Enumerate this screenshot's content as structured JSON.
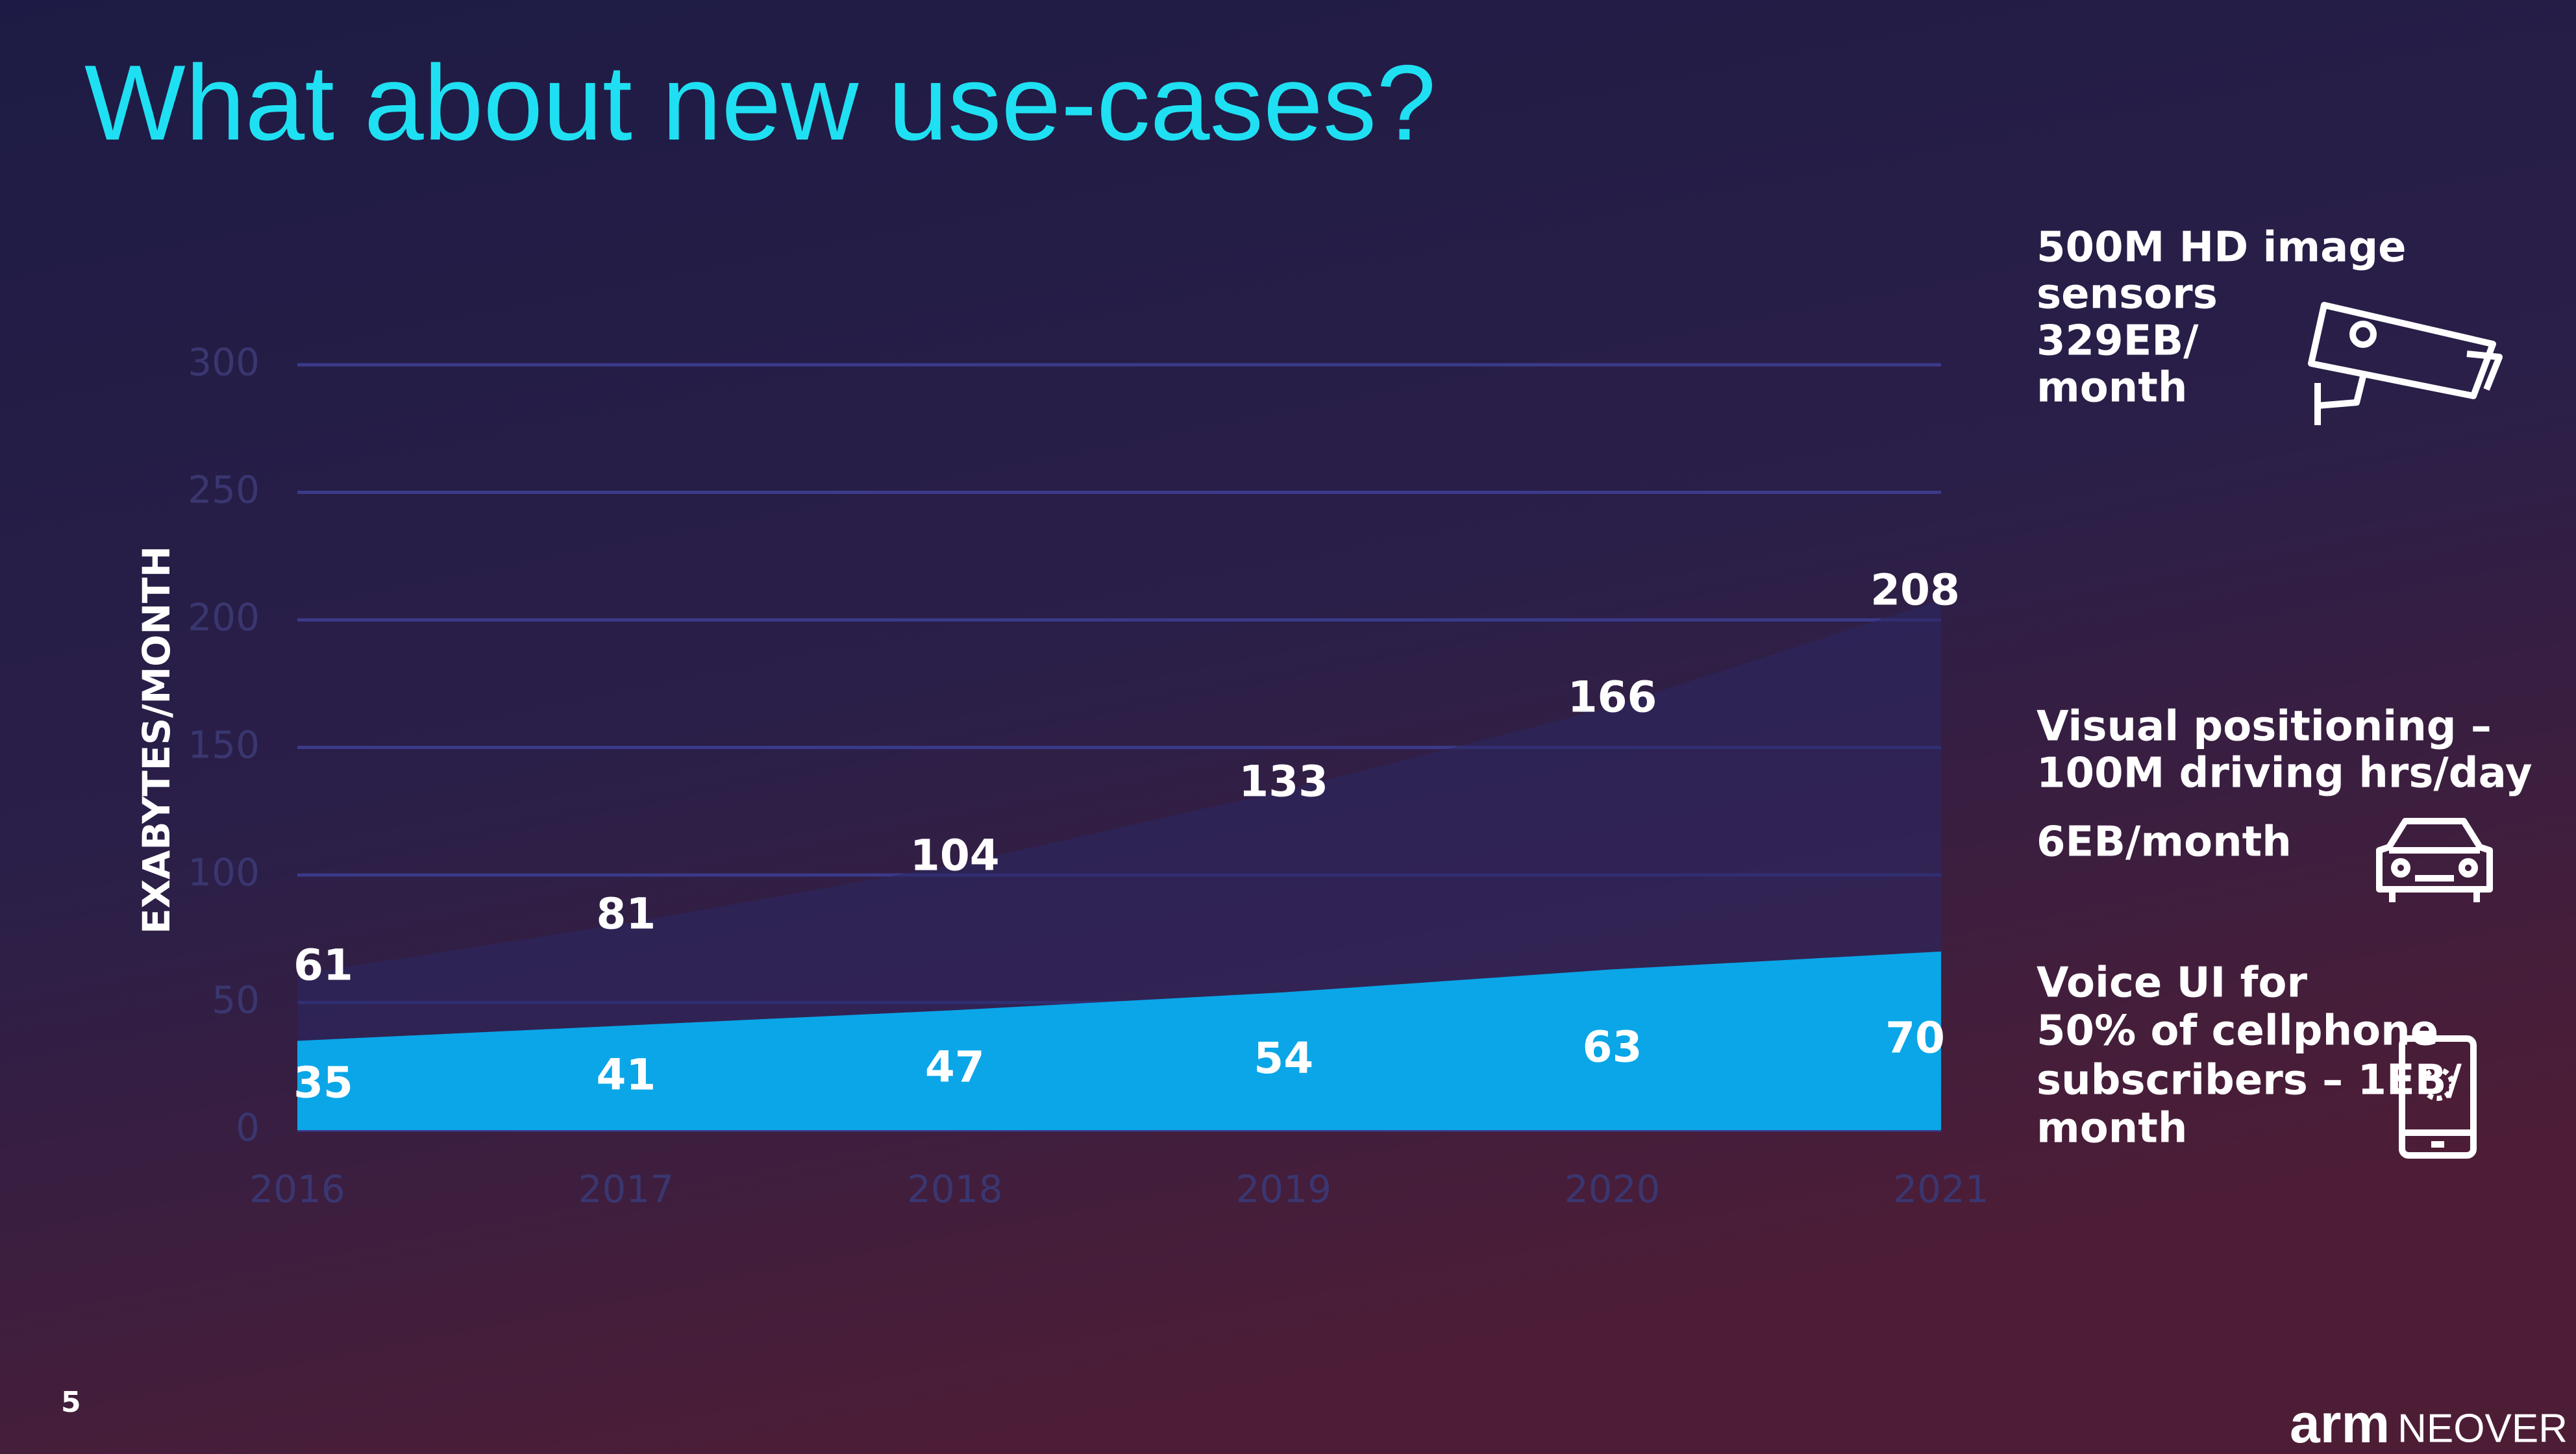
{
  "chart_data": {
    "type": "area",
    "title": "What about new use-cases?",
    "y_label": "EXABYTES/MONTH",
    "categories": [
      "2016",
      "2017",
      "2018",
      "2019",
      "2020",
      "2021"
    ],
    "series": [
      {
        "color": "#2b2760",
        "values": [
          61,
          81,
          104,
          133,
          166,
          208
        ]
      },
      {
        "color": "#0aa6e8",
        "values": [
          35,
          41,
          47,
          54,
          63,
          70
        ]
      }
    ],
    "ylim": [
      0,
      300
    ],
    "yticks": [
      0,
      50,
      100,
      150,
      200,
      250,
      300
    ],
    "grid": true,
    "annotations": [
      {
        "lines": [
          "500M HD image",
          "sensors",
          "329EB/",
          "month"
        ]
      },
      {
        "lines": [
          "Visual positioning –",
          "100M driving hrs/day",
          "6EB/month"
        ]
      },
      {
        "lines": [
          "Voice UI for",
          "50% of cellphone",
          "subscribers – 1EB/",
          "month"
        ]
      }
    ],
    "page_number": "5",
    "brand": "arm",
    "brand_product": "NEOVER"
  }
}
